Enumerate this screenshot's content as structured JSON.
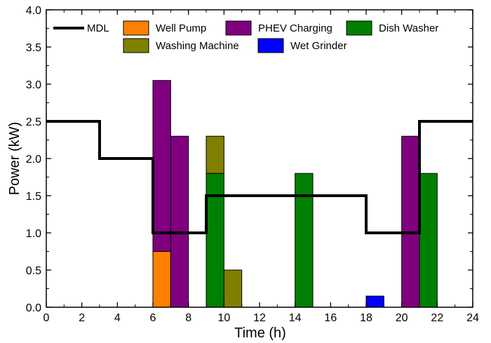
{
  "chart_data": {
    "type": "bar",
    "xlabel": "Time (h)",
    "ylabel": "Power (kW)",
    "xlim": [
      0,
      24
    ],
    "ylim": [
      0,
      4.0
    ],
    "x_ticks": [
      "0",
      "2",
      "4",
      "6",
      "8",
      "10",
      "12",
      "14",
      "16",
      "18",
      "20",
      "22",
      "24"
    ],
    "y_ticks": [
      "0.0",
      "0.5",
      "1.0",
      "1.5",
      "2.0",
      "2.5",
      "3.0",
      "3.5",
      "4.0"
    ],
    "grid": false,
    "legend_position": "top",
    "line_series": {
      "name": "MDL",
      "color": "#000000",
      "step_points": [
        [
          0,
          2.5
        ],
        [
          3,
          2.5
        ],
        [
          3,
          2.0
        ],
        [
          6,
          2.0
        ],
        [
          6,
          1.0
        ],
        [
          9,
          1.0
        ],
        [
          9,
          1.5
        ],
        [
          18,
          1.5
        ],
        [
          18,
          1.0
        ],
        [
          21,
          1.0
        ],
        [
          21,
          2.5
        ],
        [
          24,
          2.5
        ]
      ]
    },
    "series": [
      {
        "name": "Well Pump",
        "color": "#ff8000",
        "bars": [
          {
            "start": 6,
            "end": 7,
            "bottom": 0,
            "top": 0.75
          }
        ]
      },
      {
        "name": "PHEV Charging",
        "color": "#800080",
        "bars": [
          {
            "start": 6,
            "end": 7,
            "bottom": 0.75,
            "top": 3.05
          },
          {
            "start": 7,
            "end": 8,
            "bottom": 0,
            "top": 2.3
          },
          {
            "start": 20,
            "end": 21,
            "bottom": 0,
            "top": 2.3
          }
        ]
      },
      {
        "name": "Dish Washer",
        "color": "#008000",
        "bars": [
          {
            "start": 9,
            "end": 10,
            "bottom": 0,
            "top": 1.8
          },
          {
            "start": 14,
            "end": 15,
            "bottom": 0,
            "top": 1.8
          },
          {
            "start": 21,
            "end": 22,
            "bottom": 0,
            "top": 1.8
          }
        ]
      },
      {
        "name": "Washing Machine",
        "color": "#808000",
        "bars": [
          {
            "start": 9,
            "end": 10,
            "bottom": 1.8,
            "top": 2.3
          },
          {
            "start": 10,
            "end": 11,
            "bottom": 0,
            "top": 0.5
          }
        ]
      },
      {
        "name": "Wet Grinder",
        "color": "#0000ff",
        "bars": [
          {
            "start": 18,
            "end": 19,
            "bottom": 0,
            "top": 0.15
          }
        ]
      }
    ]
  }
}
